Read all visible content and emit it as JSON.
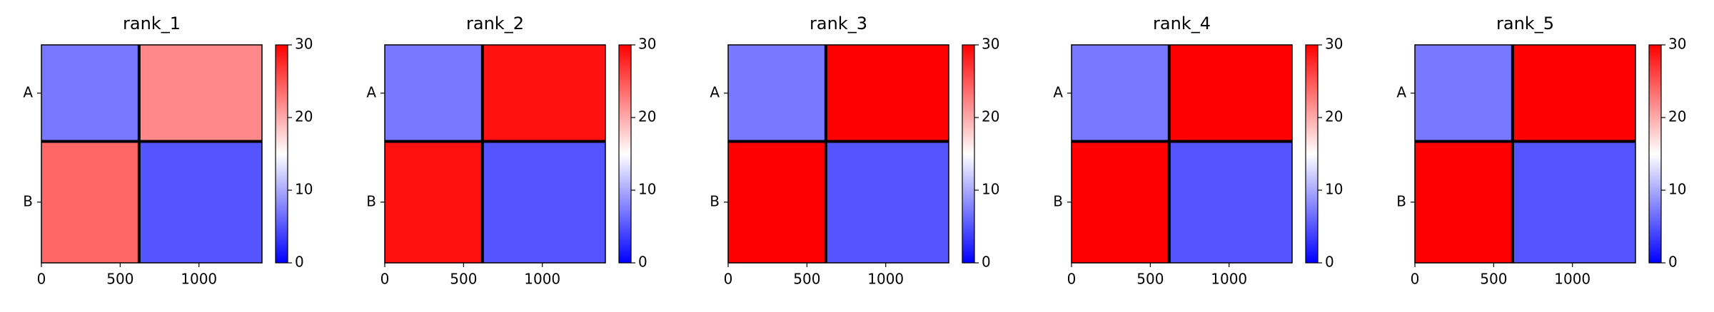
{
  "chart_data": [
    {
      "type": "heatmap",
      "title": "rank_1",
      "x_bins": [
        0,
        620,
        1400
      ],
      "y_bins": [
        0,
        620,
        1400
      ],
      "categories": [
        "A",
        "B"
      ],
      "values": [
        [
          7,
          22
        ],
        [
          24,
          5
        ]
      ],
      "xlim": [
        0,
        1400
      ],
      "xticks": [
        0,
        500,
        1000
      ],
      "zlim": [
        0,
        30
      ],
      "zticks": [
        0,
        10,
        20,
        30
      ],
      "colors": [
        "#0000ff",
        "#ffffff",
        "#ff0000"
      ]
    },
    {
      "type": "heatmap",
      "title": "rank_2",
      "x_bins": [
        0,
        620,
        1400
      ],
      "y_bins": [
        0,
        620,
        1400
      ],
      "categories": [
        "A",
        "B"
      ],
      "values": [
        [
          7,
          29
        ],
        [
          29,
          5
        ]
      ],
      "xlim": [
        0,
        1400
      ],
      "xticks": [
        0,
        500,
        1000
      ],
      "zlim": [
        0,
        30
      ],
      "zticks": [
        0,
        10,
        20,
        30
      ],
      "colors": [
        "#0000ff",
        "#ffffff",
        "#ff0000"
      ]
    },
    {
      "type": "heatmap",
      "title": "rank_3",
      "x_bins": [
        0,
        620,
        1400
      ],
      "y_bins": [
        0,
        620,
        1400
      ],
      "categories": [
        "A",
        "B"
      ],
      "values": [
        [
          7,
          30
        ],
        [
          30,
          5
        ]
      ],
      "xlim": [
        0,
        1400
      ],
      "xticks": [
        0,
        500,
        1000
      ],
      "zlim": [
        0,
        30
      ],
      "zticks": [
        0,
        10,
        20,
        30
      ],
      "colors": [
        "#0000ff",
        "#ffffff",
        "#ff0000"
      ]
    },
    {
      "type": "heatmap",
      "title": "rank_4",
      "x_bins": [
        0,
        620,
        1400
      ],
      "y_bins": [
        0,
        620,
        1400
      ],
      "categories": [
        "A",
        "B"
      ],
      "values": [
        [
          7,
          30
        ],
        [
          30,
          5
        ]
      ],
      "xlim": [
        0,
        1400
      ],
      "xticks": [
        0,
        500,
        1000
      ],
      "zlim": [
        0,
        30
      ],
      "zticks": [
        0,
        10,
        20,
        30
      ],
      "colors": [
        "#0000ff",
        "#ffffff",
        "#ff0000"
      ]
    },
    {
      "type": "heatmap",
      "title": "rank_5",
      "x_bins": [
        0,
        620,
        1400
      ],
      "y_bins": [
        0,
        620,
        1400
      ],
      "categories": [
        "A",
        "B"
      ],
      "values": [
        [
          7,
          30
        ],
        [
          30,
          5
        ]
      ],
      "xlim": [
        0,
        1400
      ],
      "xticks": [
        0,
        500,
        1000
      ],
      "zlim": [
        0,
        30
      ],
      "zticks": [
        0,
        10,
        20,
        30
      ],
      "colors": [
        "#0000ff",
        "#ffffff",
        "#ff0000"
      ]
    }
  ]
}
